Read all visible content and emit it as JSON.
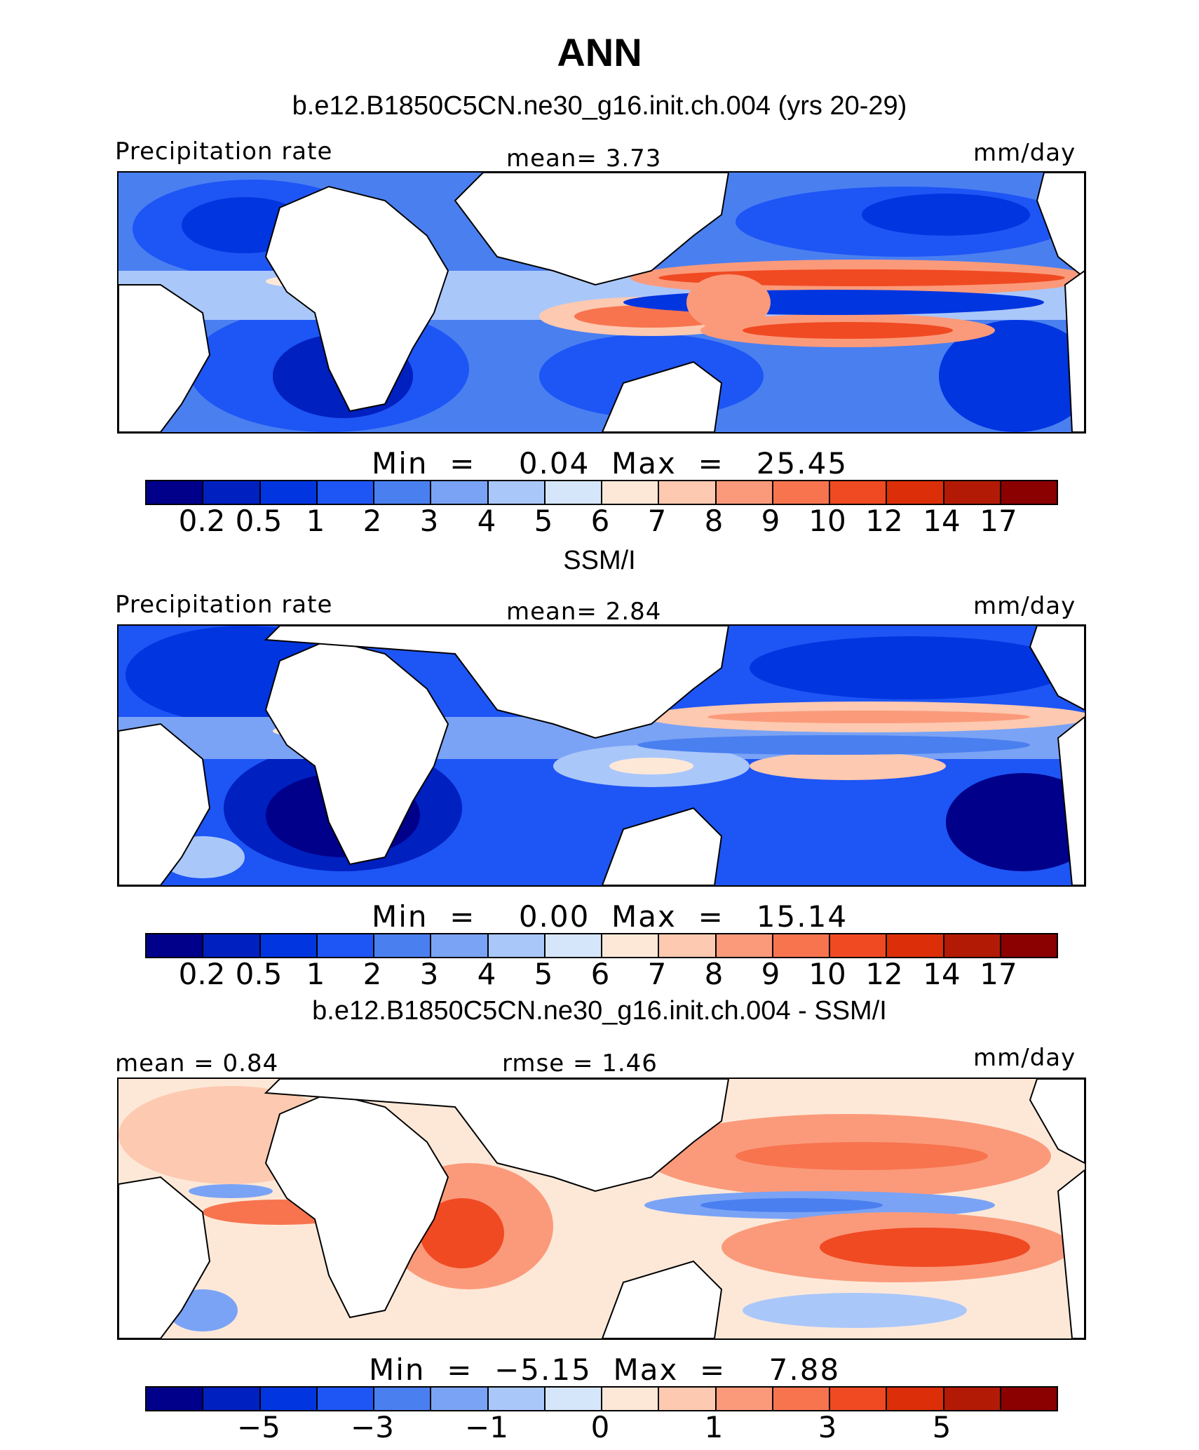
{
  "figure_title": "ANN",
  "colors": {
    "precip_scale": [
      "#00008b",
      "#0020c0",
      "#0035e0",
      "#1e55f5",
      "#4a7ff0",
      "#7aa3f5",
      "#aac7fa",
      "#d5e6fb",
      "#fde8d8",
      "#fdc9b0",
      "#fb9a7a",
      "#f7744f",
      "#f04a23",
      "#dc2e08",
      "#b31a05",
      "#8b0000"
    ],
    "diff_scale": [
      "#00008b",
      "#0020c0",
      "#0035e0",
      "#1e55f5",
      "#4a7ff0",
      "#7aa3f5",
      "#aac7fa",
      "#d5e6fb",
      "#fde8d8",
      "#fdc9b0",
      "#fb9a7a",
      "#f7744f",
      "#f04a23",
      "#dc2e08",
      "#b31a05",
      "#8b0000"
    ]
  },
  "panels": [
    {
      "title": "b.e12.B1850C5CN.ne30_g16.init.ch.004 (yrs 20-29)",
      "left_label": "Precipitation rate",
      "center_label": "mean=    3.73",
      "right_label": "mm/day",
      "minmax": "Min  =    0.04  Max  =   25.45",
      "ticks": [
        "0.2",
        "0.5",
        "1",
        "2",
        "3",
        "4",
        "5",
        "6",
        "7",
        "8",
        "9",
        "10",
        "12",
        "14",
        "17"
      ]
    },
    {
      "title": "SSM/I",
      "left_label": "Precipitation rate",
      "center_label": "mean=    2.84",
      "right_label": "mm/day",
      "minmax": "Min  =    0.00  Max  =   15.14",
      "ticks": [
        "0.2",
        "0.5",
        "1",
        "2",
        "3",
        "4",
        "5",
        "6",
        "7",
        "8",
        "9",
        "10",
        "12",
        "14",
        "17"
      ]
    },
    {
      "title": "b.e12.B1850C5CN.ne30_g16.init.ch.004 - SSM/I",
      "left_label": "mean =    0.84",
      "center_label": "rmse  =    1.46",
      "right_label": "mm/day",
      "minmax": "Min  =  −5.15  Max  =    7.88",
      "ticks": [
        "−5",
        "−3",
        "−1",
        "0",
        "1",
        "3",
        "5"
      ]
    }
  ]
}
